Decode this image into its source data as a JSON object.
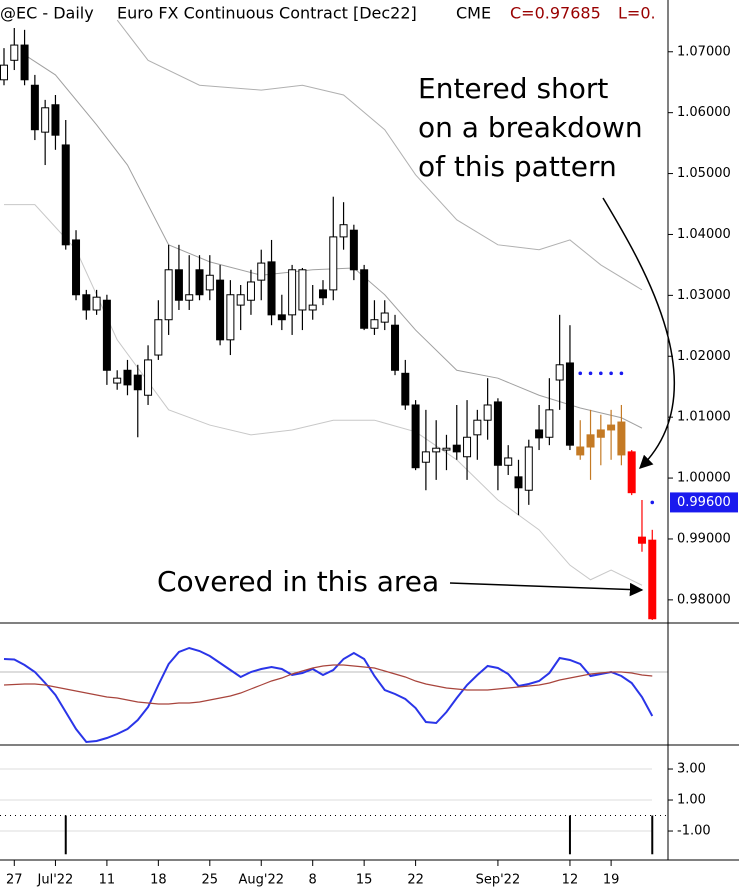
{
  "chart_data": [
    {
      "type": "candlestick",
      "symbol": "@EC - Daily",
      "title": "Euro FX Continuous Contract [Dec22]",
      "exchange": "CME",
      "last_close": "C=0.97685",
      "last_low": "L=0.",
      "categories": [
        null,
        "27",
        null,
        null,
        null,
        "Jul'22",
        null,
        null,
        null,
        null,
        "11",
        null,
        null,
        null,
        null,
        "18",
        null,
        null,
        null,
        null,
        "25",
        null,
        null,
        null,
        null,
        "Aug'22",
        null,
        null,
        null,
        null,
        "8",
        null,
        null,
        null,
        null,
        "15",
        null,
        null,
        null,
        null,
        "22",
        null,
        null,
        null,
        null,
        null,
        null,
        null,
        "Sep'22",
        null,
        null,
        null,
        null,
        null,
        null,
        "12",
        null,
        null,
        null,
        "19",
        null,
        null,
        null,
        null
      ],
      "open": [
        1.0654,
        1.0686,
        1.0711,
        1.0645,
        1.0568,
        1.0613,
        1.0547,
        1.0391,
        1.0301,
        1.0276,
        1.0292,
        1.0156,
        1.0177,
        1.0169,
        1.0136,
        1.0202,
        1.026,
        1.0342,
        1.0292,
        1.0342,
        1.0309,
        1.0325,
        1.0227,
        1.0284,
        1.0292,
        1.0325,
        1.0355,
        1.0268,
        1.0268,
        1.0276,
        1.0276,
        1.0309,
        1.0309,
        1.0396,
        1.0407,
        1.0342,
        1.0246,
        1.0256,
        1.0251,
        1.0172,
        1.012,
        1.0026,
        1.0043,
        1.0046,
        1.0054,
        1.0035,
        1.0071,
        1.0095,
        1.0125,
        1.0021,
        1.0002,
        0.998,
        1.0079,
        1.0067,
        1.0161,
        1.0189,
        1.0038,
        1.0051,
        1.0067,
        1.0079,
        1.0092,
        1.0043,
        0.9903,
        0.9898
      ],
      "high": [
        1.0706,
        1.0739,
        1.0736,
        1.0662,
        1.0621,
        1.0629,
        1.0588,
        1.0407,
        1.0309,
        1.0309,
        1.0301,
        1.0177,
        1.0194,
        1.0186,
        1.0218,
        1.0292,
        1.0383,
        1.0383,
        1.0366,
        1.0366,
        1.0366,
        1.035,
        1.0325,
        1.0317,
        1.0342,
        1.0375,
        1.0391,
        1.0301,
        1.035,
        1.0345,
        1.0317,
        1.0325,
        1.0462,
        1.0453,
        1.0416,
        1.035,
        1.0292,
        1.0292,
        1.0268,
        1.0194,
        1.0128,
        1.0112,
        1.0095,
        1.0071,
        1.012,
        1.0128,
        1.0112,
        1.0164,
        1.0131,
        1.0054,
        1.003,
        1.0063,
        1.012,
        1.0164,
        1.0268,
        1.0251,
        1.0095,
        1.0112,
        1.0104,
        1.0112,
        1.012,
        1.0046,
        0.9964,
        0.9915
      ],
      "low": [
        1.0645,
        1.067,
        1.0645,
        1.0555,
        1.0514,
        1.0539,
        1.0375,
        1.0292,
        1.026,
        1.0268,
        1.0153,
        1.0145,
        1.0136,
        1.0067,
        1.012,
        1.0194,
        1.0235,
        1.0276,
        1.0276,
        1.0292,
        1.0292,
        1.0218,
        1.0202,
        1.0243,
        1.0268,
        1.0292,
        1.0251,
        1.0243,
        1.0235,
        1.0243,
        1.026,
        1.0284,
        1.0292,
        1.0375,
        1.0325,
        1.0243,
        1.0235,
        1.0243,
        1.0169,
        1.0112,
        1.0013,
        0.998,
        0.9997,
        1.0013,
        1.003,
        0.9997,
        1.003,
        1.0063,
        0.998,
        1.0005,
        0.9939,
        0.9956,
        1.0046,
        1.0054,
        1.0112,
        1.0046,
        1.003,
        0.9997,
        1.0021,
        1.003,
        1.0021,
        0.9972,
        0.9879,
        0.9767
      ],
      "close": [
        1.0678,
        1.0711,
        1.0654,
        1.0572,
        1.0608,
        1.0563,
        1.0383,
        1.0301,
        1.0276,
        1.0297,
        1.0177,
        1.0164,
        1.0153,
        1.0145,
        1.0194,
        1.026,
        1.0342,
        1.0292,
        1.0301,
        1.0301,
        1.0333,
        1.0227,
        1.0301,
        1.0301,
        1.0322,
        1.0353,
        1.0268,
        1.026,
        1.0342,
        1.0342,
        1.0284,
        1.0296,
        1.0396,
        1.0416,
        1.0342,
        1.0246,
        1.026,
        1.0271,
        1.0177,
        1.012,
        1.0017,
        1.0043,
        1.0049,
        1.0049,
        1.0043,
        1.0067,
        1.0095,
        1.012,
        1.0021,
        1.0033,
        0.9984,
        1.0051,
        1.0066,
        1.0112,
        1.0186,
        1.0054,
        1.0051,
        1.0071,
        1.0079,
        1.0087,
        1.0038,
        0.9976,
        0.9893,
        0.9769
      ],
      "colors": [
        "#000000",
        "#000000",
        "#000000",
        "#000000",
        "#000000",
        "#000000",
        "#000000",
        "#000000",
        "#000000",
        "#000000",
        "#000000",
        "#000000",
        "#000000",
        "#000000",
        "#000000",
        "#000000",
        "#000000",
        "#000000",
        "#000000",
        "#000000",
        "#000000",
        "#000000",
        "#000000",
        "#000000",
        "#000000",
        "#000000",
        "#000000",
        "#000000",
        "#000000",
        "#000000",
        "#000000",
        "#000000",
        "#000000",
        "#000000",
        "#000000",
        "#000000",
        "#000000",
        "#000000",
        "#000000",
        "#000000",
        "#000000",
        "#000000",
        "#000000",
        "#000000",
        "#000000",
        "#000000",
        "#000000",
        "#000000",
        "#000000",
        "#000000",
        "#000000",
        "#000000",
        "#000000",
        "#000000",
        "#000000",
        "#000000",
        "#c47a25",
        "#c47a25",
        "#c47a25",
        "#c47a25",
        "#c47a25",
        "#ff0000",
        "#ff0000",
        "#ff0000"
      ],
      "bands": [
        {
          "color": "#b0b0b0",
          "x": [
            11,
            14,
            19,
            25,
            29,
            33,
            37,
            40,
            44,
            48,
            52,
            55,
            58,
            62
          ],
          "values": [
            1.0752,
            1.0686,
            1.0645,
            1.0637,
            1.0645,
            1.0629,
            1.0572,
            1.0498,
            1.0424,
            1.0383,
            1.0375,
            1.0391,
            1.035,
            1.0309
          ]
        },
        {
          "color": "#a0a0a0",
          "x": [
            2,
            5,
            9,
            12,
            16,
            20,
            25,
            30,
            34,
            37,
            40,
            44,
            48,
            52,
            56,
            60,
            62
          ],
          "values": [
            1.0695,
            1.0662,
            1.058,
            1.0514,
            1.0383,
            1.0355,
            1.0333,
            1.0342,
            1.0345,
            1.0301,
            1.0243,
            1.0177,
            1.0164,
            1.0136,
            1.0115,
            1.0099,
            1.0082
          ]
        },
        {
          "color": "#c8c8c8",
          "x": [
            0,
            3,
            7,
            11,
            16,
            20,
            24,
            28,
            32,
            36,
            40,
            44,
            48,
            52,
            55,
            57,
            59,
            62
          ],
          "values": [
            1.0449,
            1.0449,
            1.0375,
            1.0227,
            1.0112,
            1.0087,
            1.0071,
            1.0079,
            1.0095,
            1.0095,
            1.0076,
            1.003,
            0.9964,
            0.9915,
            0.9857,
            0.9833,
            0.9849,
            0.9824
          ]
        }
      ],
      "markers": [
        {
          "color": "#1a1aee",
          "x": [
            56,
            57,
            58,
            59,
            60
          ],
          "values": [
            1.0172,
            1.0172,
            1.0172,
            1.0172,
            1.0172
          ]
        },
        {
          "color": "#1a1aee",
          "x": [
            63
          ],
          "values": [
            0.996
          ],
          "value_labels": [
            "0.99600"
          ]
        }
      ],
      "ylim": [
        0.9762,
        1.0785
      ],
      "yticks": [
        {
          "value": 0.98,
          "label": "0.98000"
        },
        {
          "value": 0.99,
          "label": "0.99000"
        },
        {
          "value": 1.0,
          "label": "1.00000"
        },
        {
          "value": 1.01,
          "label": "1.01000"
        },
        {
          "value": 1.02,
          "label": "1.02000"
        },
        {
          "value": 1.03,
          "label": "1.03000"
        },
        {
          "value": 1.04,
          "label": "1.04000"
        },
        {
          "value": 1.05,
          "label": "1.05000"
        },
        {
          "value": 1.06,
          "label": "1.06000"
        },
        {
          "value": 1.07,
          "label": "1.07000"
        }
      ],
      "annotations": [
        {
          "lines": [
            "Entered short",
            "on a breakdown",
            "of this pattern"
          ]
        },
        {
          "lines": [
            "Covered in this area"
          ]
        }
      ]
    },
    {
      "type": "line",
      "series": [
        {
          "color": "#2a35e8",
          "values": [
            1.3,
            1.25,
            0.7,
            0,
            -1.1,
            -2.3,
            -4.0,
            -5.7,
            -7.0,
            -6.9,
            -6.6,
            -6.2,
            -5.7,
            -4.8,
            -3.5,
            -1.3,
            0.8,
            2.0,
            2.4,
            2.1,
            1.6,
            0.9,
            0.2,
            -0.5,
            0,
            0.3,
            0.5,
            0.3,
            -0.3,
            -0.1,
            0.3,
            -0.3,
            0.2,
            1.3,
            1.9,
            1.3,
            -0.4,
            -1.8,
            -2.2,
            -2.7,
            -3.6,
            -5.0,
            -5.1,
            -4.0,
            -2.6,
            -1.3,
            -0.3,
            0.6,
            0.4,
            -0.2,
            -1.4,
            -1.2,
            -0.9,
            -0.1,
            1.4,
            1.2,
            0.8,
            -0.4,
            -0.2,
            0,
            -0.4,
            -1.1,
            -2.5,
            -4.4
          ]
        },
        {
          "color": "#a8443c",
          "values": [
            -1.3,
            -1.25,
            -1.2,
            -1.2,
            -1.3,
            -1.5,
            -1.7,
            -1.9,
            -2.1,
            -2.3,
            -2.5,
            -2.6,
            -2.8,
            -3.0,
            -3.1,
            -3.2,
            -3.2,
            -3.1,
            -3.1,
            -3.0,
            -2.8,
            -2.6,
            -2.4,
            -2.1,
            -1.7,
            -1.3,
            -0.9,
            -0.6,
            -0.2,
            0.1,
            0.4,
            0.6,
            0.7,
            0.7,
            0.6,
            0.5,
            0.4,
            0.1,
            -0.2,
            -0.5,
            -0.9,
            -1.2,
            -1.4,
            -1.6,
            -1.7,
            -1.8,
            -1.8,
            -1.8,
            -1.7,
            -1.6,
            -1.5,
            -1.4,
            -1.3,
            -1.1,
            -0.8,
            -0.6,
            -0.4,
            -0.2,
            -0.1,
            0,
            0,
            -0.1,
            -0.3,
            -0.4
          ]
        }
      ],
      "ylim": [
        -7.3,
        4.7
      ],
      "reference": 0
    },
    {
      "type": "bar",
      "x": [
        6,
        55,
        63
      ],
      "values": [
        -2.5,
        -2.5,
        -2.5
      ],
      "color": "#000000",
      "ylim": [
        -2.74,
        4.55
      ],
      "yticks": [
        {
          "value": 3,
          "label": "3.00"
        },
        {
          "value": 1,
          "label": "1.00"
        },
        {
          "value": -1,
          "label": "-1.00"
        }
      ],
      "reference": 0
    }
  ]
}
